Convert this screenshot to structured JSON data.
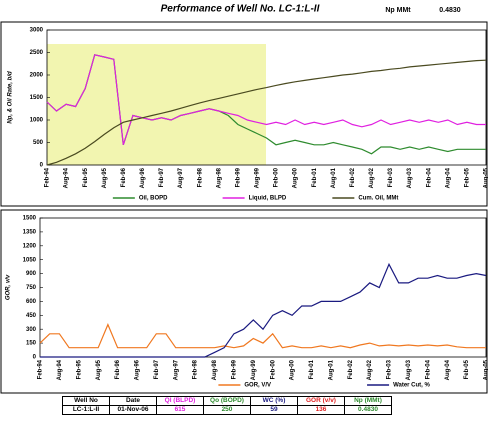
{
  "header": {
    "title": "Performance of Well No. LC-1:L-II",
    "np_label": "Np MMt",
    "np_value": "0.4830"
  },
  "chart_data": [
    {
      "type": "line",
      "y_label": "Np, & Oil Rate, b/d",
      "categories": [
        "Feb-94",
        null,
        "Aug-94",
        null,
        "Feb-95",
        null,
        "Aug-95",
        null,
        "Feb-96",
        null,
        "Aug-96",
        null,
        "Feb-97",
        null,
        "Aug-97",
        null,
        "Feb-98",
        null,
        "Aug-98",
        null,
        "Feb-99",
        null,
        "Aug-99",
        null,
        "Feb-00",
        null,
        "Aug-00",
        null,
        "Feb-01",
        null,
        "Aug-01",
        null,
        "Feb-02",
        null,
        "Aug-02",
        null,
        "Feb-03",
        null,
        "Aug-03",
        null,
        "Feb-04",
        null,
        "Aug-04",
        null,
        "Feb-05",
        null,
        "Aug-05"
      ],
      "series": [
        {
          "name": "Oil, BOPD",
          "color": "#2e8b2e",
          "values": [
            1400,
            1200,
            1350,
            1300,
            1700,
            2450,
            2400,
            2350,
            450,
            1100,
            1050,
            1000,
            1050,
            1000,
            1100,
            1150,
            1200,
            1250,
            1200,
            1100,
            900,
            800,
            700,
            600,
            450,
            500,
            550,
            500,
            450,
            450,
            500,
            450,
            400,
            350,
            250,
            400,
            400,
            350,
            400,
            350,
            400,
            350,
            300,
            350,
            350,
            350,
            350
          ]
        },
        {
          "name": "Liquid, BLPD",
          "color": "#e020e0",
          "values": [
            1400,
            1200,
            1350,
            1300,
            1700,
            2450,
            2400,
            2350,
            450,
            1100,
            1050,
            1000,
            1050,
            1000,
            1100,
            1150,
            1200,
            1250,
            1200,
            1150,
            1100,
            1000,
            950,
            900,
            950,
            900,
            1000,
            900,
            950,
            900,
            950,
            1000,
            900,
            850,
            900,
            1000,
            900,
            950,
            1000,
            950,
            1000,
            950,
            1000,
            900,
            950,
            900,
            900
          ]
        },
        {
          "name": "Cum. Oil, MMt",
          "color": "#4a4a20",
          "values": [
            0,
            60,
            150,
            250,
            370,
            520,
            680,
            830,
            950,
            1000,
            1050,
            1100,
            1150,
            1200,
            1260,
            1320,
            1380,
            1430,
            1480,
            1530,
            1580,
            1630,
            1680,
            1720,
            1770,
            1810,
            1850,
            1880,
            1910,
            1940,
            1970,
            2000,
            2020,
            2050,
            2080,
            2100,
            2130,
            2150,
            2180,
            2200,
            2220,
            2240,
            2260,
            2280,
            2300,
            2320,
            2330
          ]
        }
      ],
      "ylim": [
        0,
        3000
      ],
      "yticks": [
        0,
        500,
        1000,
        1500,
        2000,
        2500,
        3000
      ],
      "grid": false,
      "legend": "bottom"
    },
    {
      "type": "line",
      "y_label": "GOR, v/v",
      "categories": [
        "Feb-94",
        null,
        "Aug-94",
        null,
        "Feb-95",
        null,
        "Aug-95",
        null,
        "Feb-96",
        null,
        "Aug-96",
        null,
        "Feb-97",
        null,
        "Aug-97",
        null,
        "Feb-98",
        null,
        "Aug-98",
        null,
        "Feb-99",
        null,
        "Aug-99",
        null,
        "Feb-00",
        null,
        "Aug-00",
        null,
        "Feb-01",
        null,
        "Aug-01",
        null,
        "Feb-02",
        null,
        "Aug-02",
        null,
        "Feb-03",
        null,
        "Aug-03",
        null,
        "Feb-04",
        null,
        "Aug-04",
        null,
        "Feb-05",
        null,
        "Aug-05"
      ],
      "series": [
        {
          "name": "GOR, V/V",
          "color": "#f07820",
          "values": [
            150,
            250,
            250,
            100,
            100,
            100,
            100,
            350,
            100,
            100,
            100,
            100,
            250,
            250,
            100,
            100,
            100,
            100,
            100,
            120,
            100,
            120,
            200,
            150,
            250,
            100,
            120,
            100,
            100,
            120,
            100,
            120,
            100,
            130,
            150,
            120,
            130,
            120,
            130,
            120,
            130,
            120,
            130,
            110,
            100,
            100,
            100
          ]
        },
        {
          "name": "Water Cut, %",
          "color": "#1a1a80",
          "values": [
            0,
            0,
            0,
            0,
            0,
            0,
            0,
            0,
            0,
            0,
            0,
            0,
            0,
            0,
            0,
            0,
            0,
            0,
            50,
            100,
            250,
            300,
            400,
            300,
            450,
            500,
            450,
            550,
            550,
            600,
            600,
            600,
            650,
            700,
            800,
            750,
            1000,
            800,
            800,
            850,
            850,
            880,
            850,
            850,
            880,
            900,
            880
          ]
        }
      ],
      "ylim": [
        0,
        1500
      ],
      "yticks": [
        0,
        150,
        300,
        450,
        600,
        750,
        900,
        1050,
        1200,
        1350,
        1500
      ],
      "grid": false,
      "legend": "bottom"
    }
  ],
  "table": {
    "columns": [
      {
        "label": "Well No",
        "color": "#000000"
      },
      {
        "label": "Date",
        "color": "#000000"
      },
      {
        "label": "Ql (BLPD)",
        "color": "#e020e0"
      },
      {
        "label": "Qo (BOPD)",
        "color": "#2e8b2e"
      },
      {
        "label": "WC (%)",
        "color": "#1a1a80"
      },
      {
        "label": "GOR (v/v)",
        "color": "#e02020"
      },
      {
        "label": "Np (MMt)",
        "color": "#2e8b2e"
      }
    ],
    "rows": [
      [
        "LC-1:L-II",
        "01-Nov-06",
        615,
        250,
        59,
        136,
        "0.4830"
      ]
    ]
  }
}
